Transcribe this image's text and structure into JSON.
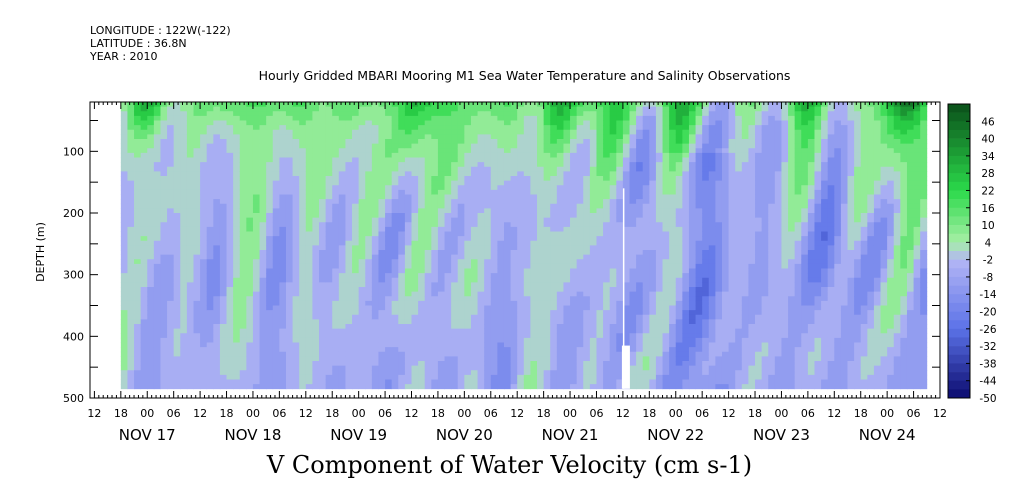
{
  "header": {
    "longitude": "LONGITUDE : 122W(-122)",
    "latitude": "LATITUDE : 36.8N",
    "year": "YEAR : 2010"
  },
  "chart_data": {
    "type": "heatmap",
    "title": "Hourly Gridded MBARI Mooring M1 Sea Water Temperature and Salinity Observations",
    "variable_title": "V Component of Water Velocity (cm s-1)",
    "ylabel": "DEPTH (m)",
    "y_inverted": true,
    "ylim": [
      500,
      20
    ],
    "yticks": [
      100,
      200,
      300,
      400,
      500
    ],
    "xlim_hours_since_nov17_00": [
      -13,
      180
    ],
    "data_extent_hours": [
      -6,
      177
    ],
    "data_depth_range_m": [
      20,
      485
    ],
    "missing_column_hour_approx": 108,
    "hour_tick_labels": [
      "12",
      "18",
      "00",
      "06",
      "12",
      "18",
      "00",
      "06",
      "12",
      "18",
      "00",
      "06",
      "12",
      "18",
      "00",
      "06",
      "12",
      "18",
      "00",
      "06",
      "12",
      "18",
      "00",
      "06",
      "12",
      "18",
      "00",
      "06",
      "12",
      "18",
      "00",
      "06",
      "12"
    ],
    "day_labels": [
      "NOV 17",
      "NOV 18",
      "NOV 19",
      "NOV 20",
      "NOV 21",
      "NOV 22",
      "NOV 23",
      "NOV 24"
    ],
    "colorbar": {
      "labels": [
        "46",
        "40",
        "34",
        "28",
        "22",
        "16",
        "10",
        "4",
        "-2",
        "-8",
        "-14",
        "-20",
        "-26",
        "-32",
        "-38",
        "-44",
        "-50"
      ],
      "range": [
        -50,
        52
      ],
      "colors": {
        "dark_green": "#0a4f1a",
        "green": "#2bd94a",
        "light_green": "#a6efa6",
        "light_blue": "#b3b6f5",
        "blue": "#5b72e8",
        "dark_blue": "#0b0b6e"
      }
    },
    "pattern_summary": {
      "near_surface_values": "positive green (about 10 to 30 cm/s) in upper 150 m for most days",
      "deep_values": "mostly light blue (about -2 to -14 cm/s) with darker blue patches to about -26"
    }
  }
}
